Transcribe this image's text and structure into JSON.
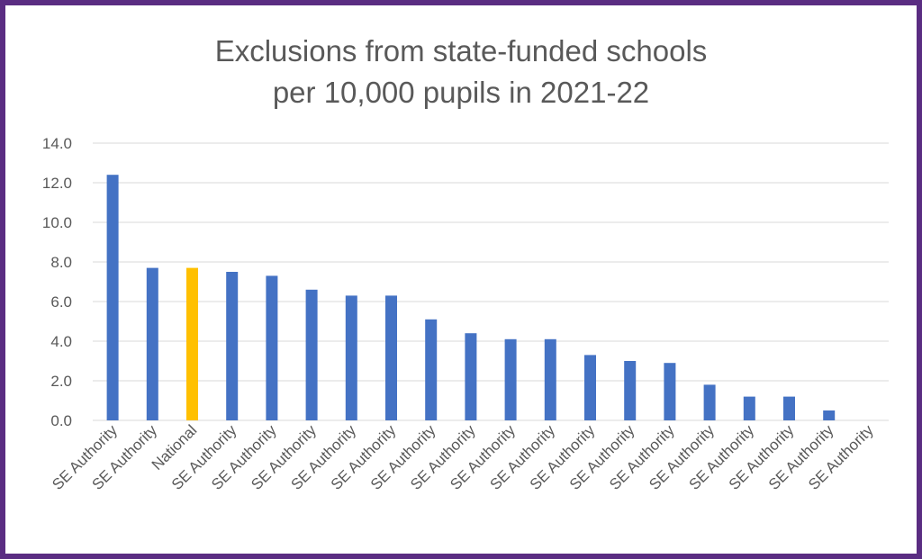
{
  "chart_data": {
    "type": "bar",
    "title_line1": "Exclusions from state-funded schools",
    "title_line2": "per 10,000 pupils in 2021-22",
    "xlabel": "",
    "ylabel": "",
    "ylim": [
      0,
      14
    ],
    "yticks": [
      "0.0",
      "2.0",
      "4.0",
      "6.0",
      "8.0",
      "10.0",
      "12.0",
      "14.0"
    ],
    "grid": true,
    "legend": "none",
    "categories": [
      "SE Authority",
      "SE Authority",
      "National",
      "SE Authority",
      "SE Authority",
      "SE Authority",
      "SE Authority",
      "SE Authority",
      "SE Authority",
      "SE Authority",
      "SE Authority",
      "SE Authority",
      "SE Authority",
      "SE Authority",
      "SE Authority",
      "SE Authority",
      "SE Authority",
      "SE Authority",
      "SE Authority",
      "SE Authority"
    ],
    "values": [
      12.4,
      7.7,
      7.7,
      7.5,
      7.3,
      6.6,
      6.3,
      6.3,
      5.1,
      4.4,
      4.1,
      4.1,
      3.3,
      3.0,
      2.9,
      1.8,
      1.2,
      1.2,
      0.5,
      0.0
    ],
    "colors": {
      "default": "#4472c4",
      "highlight": "#ffc000",
      "highlight_category": "National",
      "grid": "#d9d9d9",
      "text": "#595959",
      "frame": "#5a2d82"
    }
  }
}
